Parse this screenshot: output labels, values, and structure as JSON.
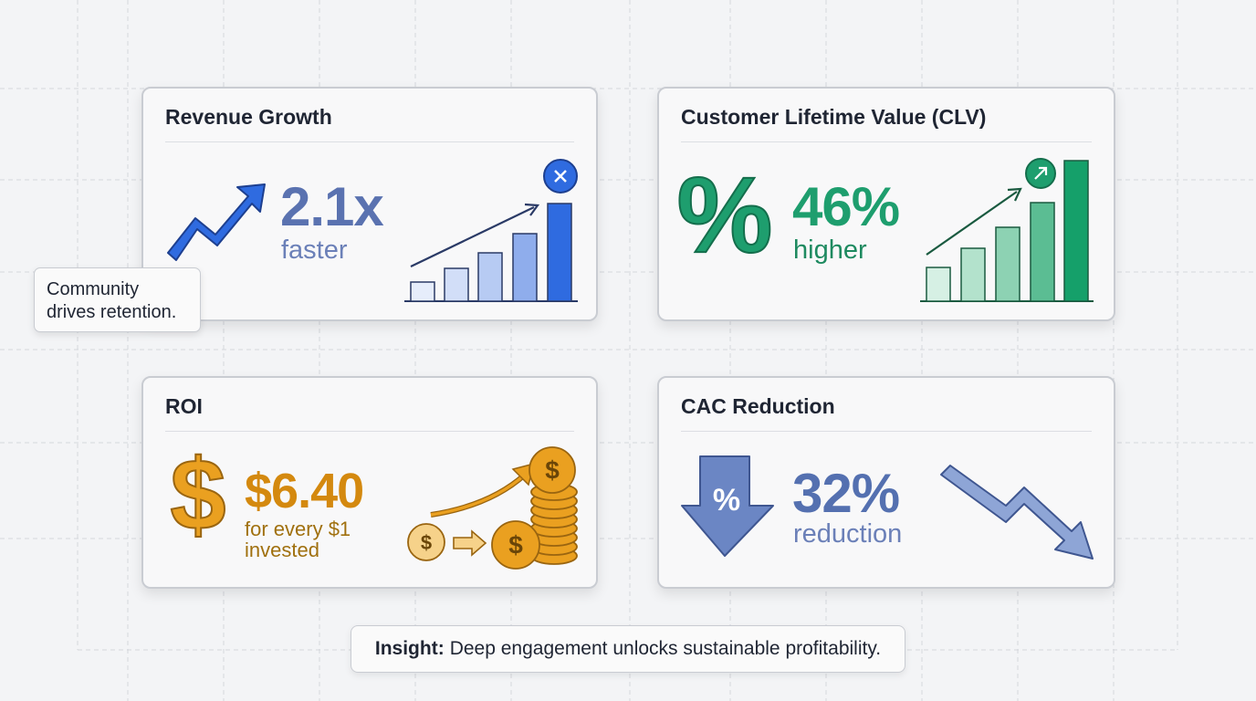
{
  "note": {
    "lines": [
      "Community",
      "drives retention."
    ]
  },
  "cards": [
    {
      "title": "Revenue Growth",
      "value": "2.1x",
      "caption": [
        "faster"
      ]
    },
    {
      "title": "Customer Lifetime Value (CLV)",
      "value": "46%",
      "caption": [
        "higher"
      ],
      "icon_glyph": "%"
    },
    {
      "title": "ROI",
      "value": "$6.40",
      "caption": [
        "for every $1",
        "invested"
      ],
      "icon_glyph": "$"
    },
    {
      "title": "CAC Reduction",
      "value": "32%",
      "caption": [
        "reduction"
      ],
      "icon_glyph": "%"
    }
  ],
  "insight": {
    "label": "Insight:",
    "text": "Deep engagement unlocks sustainable profitability."
  }
}
